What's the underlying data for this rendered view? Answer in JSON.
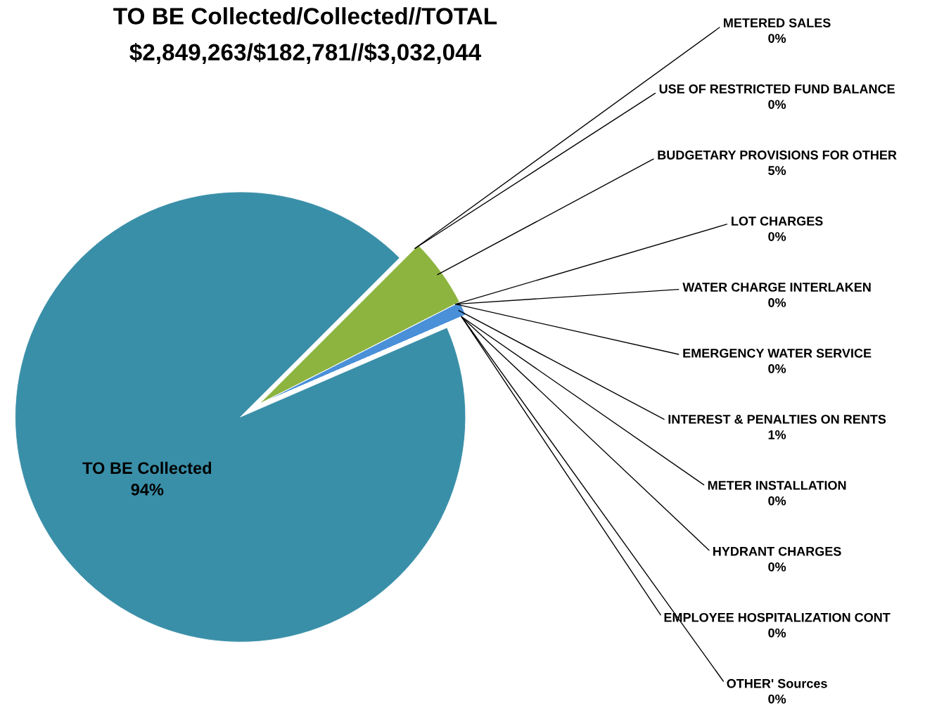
{
  "chart_data": {
    "type": "pie",
    "title": "TO BE Collected/Collected//TOTAL",
    "subtitle": "$2,849,263/$182,781//$3,032,044",
    "categories": [
      "METERED SALES",
      "USE OF RESTRICTED FUND BALANCE",
      "BUDGETARY PROVISIONS FOR OTHER",
      "LOT CHARGES",
      "WATER CHARGE INTERLAKEN",
      "EMERGENCY WATER SERVICE",
      "INTEREST & PENALTIES ON RENTS",
      "METER INSTALLATION",
      "HYDRANT CHARGES",
      "EMPLOYEE HOSPITALIZATION CONT",
      "OTHER' Sources",
      "TO BE Collected"
    ],
    "values": [
      0,
      0,
      5,
      0,
      0,
      0,
      1,
      0,
      0,
      0,
      0,
      94
    ],
    "value_labels": [
      "0%",
      "0%",
      "5%",
      "0%",
      "0%",
      "0%",
      "1%",
      "0%",
      "0%",
      "0%",
      "0%",
      "94%"
    ],
    "colors": [
      "#2f4f8f",
      "#5b3b8c",
      "#8db43f",
      "#3b6fb5",
      "#4aa36b",
      "#d9574a",
      "#4a90d9",
      "#e0943a",
      "#7aa7d9",
      "#c0504d",
      "#9bbb59",
      "#3a8fa8"
    ],
    "legend": false
  }
}
